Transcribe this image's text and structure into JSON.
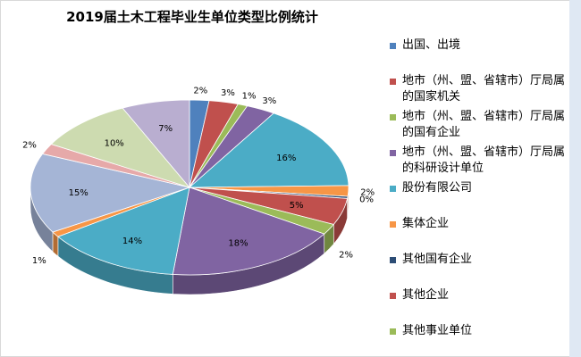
{
  "chart_data": {
    "type": "pie",
    "title": "2019届土木工程毕业生单位类型比例统计",
    "slices": [
      {
        "label": "出国、出境",
        "value": 2,
        "pct_label": "2%",
        "color": "#4f81bd"
      },
      {
        "label": "地市（州、盟、省辖市）厅局属的国家机关",
        "value": 3,
        "pct_label": "3%",
        "color": "#c0504d"
      },
      {
        "label": "地市（州、盟、省辖市）厅局属的国有企业",
        "value": 1,
        "pct_label": "1%",
        "color": "#9bbb59"
      },
      {
        "label": "地市（州、盟、省辖市）厅局属的科研设计单位",
        "value": 3,
        "pct_label": "3%",
        "color": "#8064a2"
      },
      {
        "label": "股份有限公司",
        "value": 16,
        "pct_label": "16%",
        "color": "#4bacc6"
      },
      {
        "label": "集体企业",
        "value": 2,
        "pct_label": "2%",
        "color": "#f79646"
      },
      {
        "label": "其他国有企业",
        "value": 0.4,
        "pct_label": "0%",
        "color": "#2c4d75"
      },
      {
        "label": "其他企业",
        "value": 5,
        "pct_label": "5%",
        "color": "#c0504d"
      },
      {
        "label": "其他事业单位",
        "value": 2,
        "pct_label": "2%",
        "color": "#9bbb59"
      },
      {
        "label": "",
        "value": 18,
        "pct_label": "18%",
        "color": "#8064a2"
      },
      {
        "label": "",
        "value": 14,
        "pct_label": "14%",
        "color": "#4bacc6"
      },
      {
        "label": "",
        "value": 1,
        "pct_label": "1%",
        "color": "#f79646"
      },
      {
        "label": "",
        "value": 15,
        "pct_label": "15%",
        "color": "#a5b5d6"
      },
      {
        "label": "",
        "value": 2,
        "pct_label": "2%",
        "color": "#e6a9a9"
      },
      {
        "label": "",
        "value": 10,
        "pct_label": "10%",
        "color": "#cddbb0"
      },
      {
        "label": "",
        "value": 7,
        "pct_label": "7%",
        "color": "#b9aed0"
      }
    ],
    "legend_position": "right"
  }
}
